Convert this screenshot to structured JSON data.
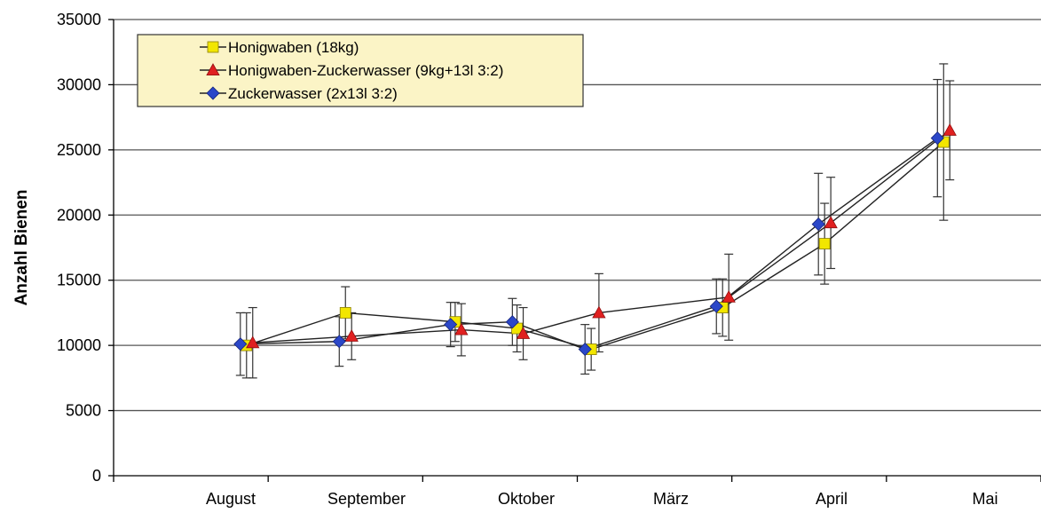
{
  "chart_data": {
    "type": "line",
    "title": "",
    "xlabel": "",
    "ylabel": "Anzahl Bienen",
    "ylim": [
      0,
      35000
    ],
    "yticks": [
      0,
      5000,
      10000,
      15000,
      20000,
      25000,
      30000,
      35000
    ],
    "x_categories": [
      "August",
      "September",
      "Oktober",
      "März",
      "April",
      "Mai"
    ],
    "grid": "horizontal",
    "legend_position": "top-left",
    "series": [
      {
        "name": "Honigwaben (18kg)",
        "marker": "square",
        "color": "#f2e600",
        "x": [
          4.3,
          7.5,
          11.05,
          13.05,
          15.45,
          19.7,
          23.0,
          26.85
        ],
        "y": [
          10000,
          12500,
          11800,
          11300,
          9700,
          12900,
          17800,
          25600
        ],
        "err": [
          2500,
          2000,
          1500,
          1800,
          1600,
          2200,
          3100,
          6000
        ]
      },
      {
        "name": "Honigwaben-Zuckerwasser (9kg+13l 3:2)",
        "marker": "triangle",
        "color": "#e02020",
        "x": [
          4.5,
          7.7,
          11.25,
          13.25,
          15.7,
          19.9,
          23.2,
          27.05
        ],
        "y": [
          10200,
          10700,
          11200,
          10900,
          12500,
          13700,
          19400,
          26500
        ],
        "err": [
          2700,
          1800,
          2000,
          2000,
          3000,
          3300,
          3500,
          3800
        ]
      },
      {
        "name": "Zuckerwasser (2x13l 3:2)",
        "marker": "diamond",
        "color": "#2b47c8",
        "x": [
          4.1,
          7.3,
          10.9,
          12.9,
          15.25,
          19.5,
          22.8,
          26.65
        ],
        "y": [
          10100,
          10300,
          11600,
          11800,
          9700,
          13000,
          19300,
          25900
        ],
        "err": [
          2400,
          1900,
          1700,
          1800,
          1900,
          2100,
          3900,
          4500
        ]
      }
    ]
  },
  "legend": {
    "items": [
      {
        "label": "Honigwaben (18kg)"
      },
      {
        "label": "Honigwaben-Zuckerwasser (9kg+13l 3:2)"
      },
      {
        "label": "Zuckerwasser (2x13l 3:2)"
      }
    ]
  }
}
